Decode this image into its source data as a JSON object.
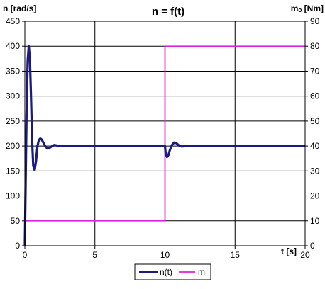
{
  "chart_data": {
    "type": "line",
    "title": "n = f(t)",
    "xlabel": "t [s]",
    "ylabel_left": "n [rad/s]",
    "ylabel_right": "mₒ [Nm]",
    "xlim": [
      0,
      20
    ],
    "ylim_left": [
      0,
      450
    ],
    "ylim_right": [
      0,
      90
    ],
    "x_ticks": [
      0,
      5,
      10,
      15,
      20
    ],
    "y_ticks_left": [
      0,
      50,
      100,
      150,
      200,
      250,
      300,
      350,
      400,
      450
    ],
    "y_ticks_right": [
      0,
      10,
      20,
      30,
      40,
      50,
      60,
      70,
      80,
      90
    ],
    "grid": true,
    "legend_position": "bottom-center",
    "series": [
      {
        "name": "n(t)",
        "axis": "left",
        "color": "#1a1a80",
        "x": [
          0,
          0.05,
          0.12,
          0.2,
          0.28,
          0.36,
          0.44,
          0.52,
          0.6,
          0.7,
          0.8,
          0.9,
          1.0,
          1.1,
          1.2,
          1.3,
          1.45,
          1.6,
          1.75,
          1.9,
          2.1,
          2.3,
          2.5,
          3.0,
          4,
          6,
          8,
          9.8,
          10.0,
          10.05,
          10.15,
          10.25,
          10.35,
          10.5,
          10.65,
          10.8,
          11.0,
          11.2,
          11.5,
          12,
          14,
          16,
          18,
          20
        ],
        "y": [
          0,
          110,
          260,
          370,
          400,
          375,
          300,
          210,
          160,
          152,
          170,
          200,
          212,
          215,
          213,
          208,
          200,
          195,
          196,
          199,
          202,
          201,
          200,
          200,
          200,
          200,
          200,
          200,
          200,
          185,
          178,
          182,
          192,
          202,
          207,
          206,
          201,
          199,
          200,
          200,
          200,
          200,
          200,
          200
        ]
      },
      {
        "name": "m",
        "axis": "right",
        "color": "#e020e0",
        "x": [
          0,
          10,
          10,
          20
        ],
        "y": [
          10,
          10,
          80,
          80
        ]
      }
    ]
  }
}
